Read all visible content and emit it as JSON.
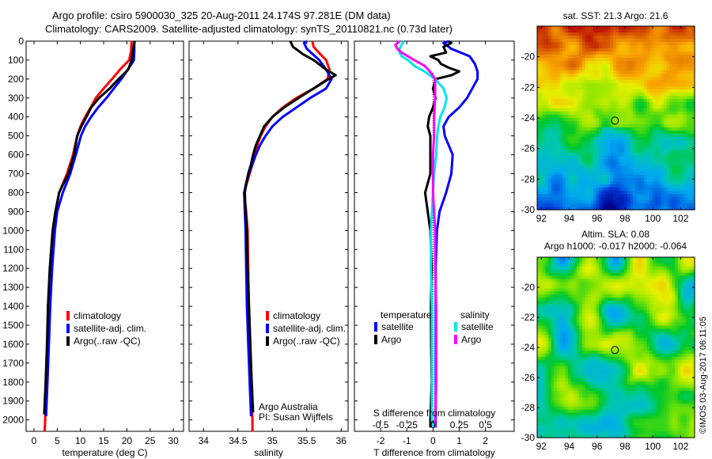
{
  "header": {
    "line1": "Argo profile: csiro 5900030_325 20-Aug-2011 24.174S 97.281E (DM data)",
    "line2": "Climatology: CARS2009. Satellite-adjusted climatology: synTS_20110821.nc (0.73d later)"
  },
  "colors": {
    "climatology": "#ff0000",
    "satellite": "#0000ff",
    "argo": "#000000",
    "sal_satellite": "#00e5ee",
    "sal_argo": "#ff00ff"
  },
  "chart_data": [
    {
      "id": "temperature",
      "type": "line",
      "xlabel": "temperature (deg C)",
      "ylabel": "",
      "xlim": [
        -1.7,
        32.2
      ],
      "ylim": [
        2060,
        0
      ],
      "xticks": [
        0,
        5,
        10,
        15,
        20,
        25,
        30
      ],
      "yticks": [
        0,
        100,
        200,
        300,
        400,
        500,
        600,
        700,
        800,
        900,
        1000,
        1100,
        1200,
        1300,
        1400,
        1500,
        1600,
        1700,
        1800,
        1900,
        2000
      ],
      "legend": [
        "climatology",
        "satellite-adj. clim.",
        "Argo(..raw -QC)"
      ],
      "series": [
        {
          "name": "climatology",
          "depth": [
            0,
            50,
            100,
            150,
            200,
            250,
            300,
            350,
            400,
            450,
            500,
            600,
            700,
            800,
            900,
            1000,
            1200,
            1400,
            1600,
            1800,
            2000,
            2060
          ],
          "values": [
            21.0,
            20.9,
            20.5,
            18.5,
            16.8,
            15.0,
            13.3,
            12.2,
            11.0,
            10.0,
            9.3,
            8.4,
            7.1,
            5.4,
            4.7,
            4.2,
            3.6,
            3.2,
            2.9,
            2.6,
            2.4,
            2.3
          ]
        },
        {
          "name": "satellite-adj. clim.",
          "depth": [
            0,
            50,
            100,
            150,
            200,
            250,
            300,
            350,
            400,
            450,
            500,
            600,
            700,
            800,
            900,
            1000,
            1200,
            1400,
            1600,
            1800,
            1980
          ],
          "values": [
            21.6,
            21.6,
            21.5,
            20.2,
            18.8,
            17.2,
            15.6,
            13.8,
            12.3,
            11.0,
            10.1,
            9.0,
            7.8,
            6.2,
            5.0,
            4.5,
            3.9,
            3.5,
            3.2,
            2.9,
            2.6
          ]
        },
        {
          "name": "Argo(..raw -QC)",
          "depth": [
            0,
            20,
            60,
            100,
            150,
            200,
            250,
            300,
            350,
            400,
            450,
            500,
            600,
            700,
            800,
            900,
            1000,
            1200,
            1400,
            1600,
            1800,
            1970
          ],
          "values": [
            21.7,
            21.5,
            21.3,
            21.0,
            20.3,
            18.2,
            16.3,
            14.0,
            12.3,
            11.3,
            10.2,
            9.3,
            8.6,
            7.4,
            5.4,
            4.6,
            4.0,
            3.4,
            3.0,
            2.8,
            2.5,
            2.2
          ]
        }
      ]
    },
    {
      "id": "salinity",
      "type": "line",
      "xlabel": "salinity",
      "xlim": [
        33.79,
        36.1
      ],
      "ylim": [
        2060,
        0
      ],
      "xticks": [
        34,
        34.5,
        35,
        35.5,
        36
      ],
      "legend": [
        "climatology",
        "satellite-adj. clim.",
        "Argo(..raw -QC)"
      ],
      "annotation": [
        "Argo Australia",
        "PI: Susan Wijffels"
      ],
      "series": [
        {
          "name": "climatology",
          "depth": [
            0,
            30,
            70,
            100,
            150,
            200,
            250,
            300,
            350,
            400,
            450,
            500,
            550,
            600,
            650,
            700,
            750,
            800,
            900,
            1000,
            1200,
            1400,
            1600,
            1800,
            2000,
            2060
          ],
          "values": [
            35.58,
            35.6,
            35.7,
            35.78,
            35.83,
            35.8,
            35.6,
            35.35,
            35.15,
            35.0,
            34.9,
            34.83,
            34.78,
            34.74,
            34.71,
            34.67,
            34.63,
            34.59,
            34.62,
            34.64,
            34.65,
            34.66,
            34.68,
            34.69,
            34.71,
            34.71
          ]
        },
        {
          "name": "satellite-adj. clim.",
          "depth": [
            0,
            10,
            40,
            100,
            150,
            200,
            250,
            300,
            350,
            400,
            450,
            500,
            550,
            600,
            650,
            700,
            750,
            800,
            900,
            1000,
            1200,
            1400,
            1600,
            1800,
            1980
          ],
          "values": [
            35.5,
            35.46,
            35.5,
            35.68,
            35.78,
            35.86,
            35.78,
            35.55,
            35.35,
            35.15,
            35.0,
            34.9,
            34.82,
            34.76,
            34.71,
            34.66,
            34.62,
            34.59,
            34.6,
            34.61,
            34.62,
            34.63,
            34.65,
            34.67,
            34.69
          ]
        },
        {
          "name": "Argo(..raw -QC)",
          "depth": [
            0,
            30,
            70,
            100,
            150,
            180,
            200,
            250,
            300,
            350,
            400,
            450,
            500,
            550,
            600,
            650,
            700,
            750,
            800,
            900,
            1000,
            1200,
            1400,
            1600,
            1800,
            1960
          ],
          "values": [
            35.26,
            35.3,
            35.45,
            35.6,
            35.78,
            35.92,
            35.82,
            35.6,
            35.38,
            35.17,
            35.0,
            34.88,
            34.82,
            34.76,
            34.72,
            34.69,
            34.65,
            34.62,
            34.6,
            34.61,
            34.63,
            34.64,
            34.66,
            34.68,
            34.7,
            34.72
          ]
        }
      ]
    },
    {
      "id": "differences",
      "type": "line",
      "xlabel": "T difference from climatology",
      "xlabel_top": "S difference from climatology",
      "xlim": [
        -3.0,
        3.1
      ],
      "xlim_s": [
        -0.75,
        0.775
      ],
      "ylim": [
        2060,
        0
      ],
      "xticks": [
        -2,
        -1,
        0,
        1,
        2
      ],
      "xticks_s": [
        "-0.5",
        "-0.25",
        "0",
        "0.25",
        "0.5"
      ],
      "legend_headers": [
        "temperature",
        "salinity"
      ],
      "legend": [
        [
          "satellite",
          "Argo"
        ],
        [
          "satellite",
          "Argo"
        ]
      ],
      "series": [
        {
          "name": "T satellite",
          "depth": [
            0,
            10,
            40,
            80,
            120,
            160,
            200,
            250,
            300,
            350,
            400,
            450,
            500,
            550,
            600,
            700,
            800,
            900,
            1000,
            1200,
            1400,
            1600,
            1800,
            2000,
            2040
          ],
          "values": [
            0.6,
            0.4,
            0.7,
            1.4,
            1.6,
            1.7,
            1.7,
            1.5,
            1.3,
            1.0,
            0.6,
            0.4,
            0.45,
            0.6,
            0.75,
            0.7,
            0.5,
            0.25,
            0.15,
            0.1,
            0.1,
            0.1,
            0.1,
            0.1,
            0.1
          ]
        },
        {
          "name": "T Argo",
          "depth": [
            0,
            10,
            30,
            60,
            80,
            100,
            120,
            140,
            160,
            180,
            200,
            250,
            300,
            350,
            400,
            450,
            500,
            600,
            700,
            800,
            900,
            1000,
            1200,
            1400,
            1600,
            1800,
            2000,
            2040
          ],
          "values": [
            0.6,
            0.7,
            0.4,
            0.5,
            -0.1,
            0.2,
            0.3,
            0.6,
            1.0,
            0.7,
            0.1,
            0.0,
            0.1,
            0.0,
            -0.15,
            -0.2,
            -0.1,
            -0.1,
            -0.1,
            -0.3,
            -0.2,
            -0.1,
            -0.05,
            -0.08,
            -0.07,
            -0.05,
            -0.1,
            -0.1
          ]
        },
        {
          "name": "S satellite",
          "depth": [
            0,
            20,
            40,
            60,
            80,
            100,
            130,
            160,
            200,
            250,
            300,
            350,
            400,
            450,
            500,
            600,
            700,
            800,
            900,
            1000,
            1200,
            1400,
            1600,
            1800,
            2000,
            2040
          ],
          "values": [
            -0.28,
            -0.3,
            -0.32,
            -0.32,
            -0.3,
            -0.24,
            -0.18,
            -0.08,
            0.02,
            0.1,
            0.13,
            0.11,
            0.07,
            0.05,
            0.04,
            0.03,
            0.01,
            0.0,
            -0.01,
            -0.02,
            -0.02,
            -0.01,
            -0.01,
            -0.01,
            -0.01,
            0.0
          ]
        },
        {
          "name": "S Argo",
          "depth": [
            0,
            20,
            40,
            60,
            80,
            100,
            130,
            160,
            200,
            250,
            300,
            400,
            500,
            600,
            700,
            800,
            900,
            1000,
            1200,
            1400,
            1600,
            1800,
            2000,
            2040
          ],
          "values": [
            -0.32,
            -0.36,
            -0.34,
            -0.3,
            -0.24,
            -0.18,
            -0.08,
            -0.03,
            0.02,
            0.02,
            0.02,
            0.01,
            0.01,
            0.0,
            0.0,
            0.0,
            0.01,
            0.02,
            0.02,
            0.03,
            0.03,
            0.03,
            0.02,
            0.02
          ]
        }
      ]
    },
    {
      "id": "sst_map",
      "type": "heatmap",
      "title": "sat. SST: 21.3 Argo: 21.6",
      "xlim": [
        91.7,
        103
      ],
      "ylim": [
        -30,
        -18
      ],
      "xticks": [
        92,
        94,
        96,
        98,
        100,
        102
      ],
      "yticks": [
        -20,
        -22,
        -24,
        -26,
        -28,
        -30
      ],
      "marker": {
        "lon": 97.281,
        "lat": -24.174
      },
      "pattern": "warm (red/orange) in north, yellow-green mid, blue in south-center"
    },
    {
      "id": "sla_map",
      "type": "heatmap",
      "title": "Altim. SLA: 0.08",
      "subtitle": "Argo h1000: -0.017 h2000: -0.064",
      "xlim": [
        91.7,
        103
      ],
      "ylim": [
        -30,
        -18
      ],
      "xticks": [
        92,
        94,
        96,
        98,
        100,
        102
      ],
      "yticks": [
        -20,
        -22,
        -24,
        -26,
        -28,
        -30
      ],
      "marker": {
        "lon": 97.281,
        "lat": -24.174
      }
    }
  ],
  "footer": {
    "credit": "©IMOS 03-Aug-2017 06:11:05"
  }
}
